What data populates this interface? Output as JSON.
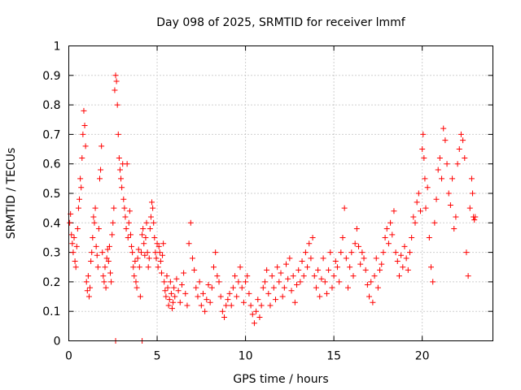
{
  "chart_data": {
    "type": "scatter",
    "title": "Day 098 of 2025, SRMTID for receiver lmmf",
    "xlabel": "GPS time / hours",
    "ylabel": "SRMTID / TECUs",
    "xlim": [
      0,
      24
    ],
    "ylim": [
      0,
      1
    ],
    "x_ticks": [
      "0",
      "5",
      "10",
      "15",
      "20"
    ],
    "x_tick_values": [
      0,
      5,
      10,
      15,
      20
    ],
    "y_ticks": [
      "0",
      "0.1",
      "0.2",
      "0.3",
      "0.4",
      "0.5",
      "0.6",
      "0.7",
      "0.8",
      "0.9",
      "1"
    ],
    "y_tick_values": [
      0,
      0.1,
      0.2,
      0.3,
      0.4,
      0.5,
      0.6,
      0.7,
      0.8,
      0.9,
      1.0
    ],
    "grid": true,
    "marker": "plus",
    "color": "#ff0000",
    "series": [
      {
        "name": "SRMTID",
        "points": [
          [
            0.05,
            0.4
          ],
          [
            0.1,
            0.43
          ],
          [
            0.15,
            0.36
          ],
          [
            0.2,
            0.33
          ],
          [
            0.25,
            0.3
          ],
          [
            0.3,
            0.35
          ],
          [
            0.35,
            0.27
          ],
          [
            0.4,
            0.25
          ],
          [
            0.45,
            0.32
          ],
          [
            0.5,
            0.38
          ],
          [
            0.55,
            0.45
          ],
          [
            0.6,
            0.48
          ],
          [
            0.65,
            0.55
          ],
          [
            0.7,
            0.52
          ],
          [
            0.75,
            0.62
          ],
          [
            0.8,
            0.7
          ],
          [
            0.85,
            0.78
          ],
          [
            0.9,
            0.73
          ],
          [
            0.95,
            0.66
          ],
          [
            1.0,
            0.2
          ],
          [
            1.05,
            0.17
          ],
          [
            1.1,
            0.22
          ],
          [
            1.15,
            0.15
          ],
          [
            1.2,
            0.18
          ],
          [
            1.25,
            0.27
          ],
          [
            1.3,
            0.3
          ],
          [
            1.35,
            0.35
          ],
          [
            1.4,
            0.42
          ],
          [
            1.45,
            0.4
          ],
          [
            1.5,
            0.45
          ],
          [
            1.55,
            0.32
          ],
          [
            1.6,
            0.29
          ],
          [
            1.65,
            0.25
          ],
          [
            1.7,
            0.38
          ],
          [
            1.75,
            0.55
          ],
          [
            1.8,
            0.58
          ],
          [
            1.85,
            0.66
          ],
          [
            1.9,
            0.3
          ],
          [
            1.95,
            0.22
          ],
          [
            2.0,
            0.2
          ],
          [
            2.05,
            0.25
          ],
          [
            2.1,
            0.18
          ],
          [
            2.15,
            0.28
          ],
          [
            2.2,
            0.31
          ],
          [
            2.25,
            0.27
          ],
          [
            2.3,
            0.32
          ],
          [
            2.35,
            0.23
          ],
          [
            2.4,
            0.2
          ],
          [
            2.45,
            0.36
          ],
          [
            2.5,
            0.4
          ],
          [
            2.55,
            0.45
          ],
          [
            2.6,
            0.85
          ],
          [
            2.65,
            0.9
          ],
          [
            2.7,
            0.88
          ],
          [
            2.75,
            0.8
          ],
          [
            2.8,
            0.7
          ],
          [
            2.85,
            0.62
          ],
          [
            2.9,
            0.58
          ],
          [
            2.95,
            0.55
          ],
          [
            3.0,
            0.52
          ],
          [
            3.05,
            0.6
          ],
          [
            3.1,
            0.48
          ],
          [
            3.15,
            0.45
          ],
          [
            3.2,
            0.42
          ],
          [
            3.25,
            0.38
          ],
          [
            3.3,
            0.6
          ],
          [
            3.35,
            0.35
          ],
          [
            3.4,
            0.4
          ],
          [
            3.45,
            0.44
          ],
          [
            3.5,
            0.36
          ],
          [
            3.55,
            0.32
          ],
          [
            3.6,
            0.3
          ],
          [
            3.65,
            0.25
          ],
          [
            3.7,
            0.22
          ],
          [
            3.75,
            0.27
          ],
          [
            3.8,
            0.2
          ],
          [
            3.85,
            0.18
          ],
          [
            3.9,
            0.28
          ],
          [
            3.95,
            0.31
          ],
          [
            4.0,
            0.25
          ],
          [
            4.05,
            0.15
          ],
          [
            4.1,
            0.3
          ],
          [
            4.15,
            0.36
          ],
          [
            4.2,
            0.38
          ],
          [
            4.25,
            0.33
          ],
          [
            4.3,
            0.29
          ],
          [
            4.35,
            0.35
          ],
          [
            4.4,
            0.4
          ],
          [
            4.45,
            0.3
          ],
          [
            4.5,
            0.25
          ],
          [
            4.55,
            0.28
          ],
          [
            4.6,
            0.38
          ],
          [
            4.65,
            0.42
          ],
          [
            4.7,
            0.47
          ],
          [
            4.75,
            0.45
          ],
          [
            4.8,
            0.4
          ],
          [
            4.85,
            0.35
          ],
          [
            4.9,
            0.3
          ],
          [
            4.95,
            0.28
          ],
          [
            5.0,
            0.33
          ],
          [
            5.05,
            0.25
          ],
          [
            5.1,
            0.32
          ],
          [
            5.15,
            0.3
          ],
          [
            5.2,
            0.27
          ],
          [
            5.25,
            0.23
          ],
          [
            5.3,
            0.29
          ],
          [
            5.35,
            0.33
          ],
          [
            5.4,
            0.2
          ],
          [
            5.45,
            0.17
          ],
          [
            5.5,
            0.15
          ],
          [
            5.55,
            0.22
          ],
          [
            5.6,
            0.18
          ],
          [
            5.65,
            0.12
          ],
          [
            5.7,
            0.14
          ],
          [
            5.75,
            0.2
          ],
          [
            5.8,
            0.16
          ],
          [
            5.85,
            0.11
          ],
          [
            5.9,
            0.13
          ],
          [
            5.95,
            0.18
          ],
          [
            6.0,
            0.15
          ],
          [
            6.1,
            0.21
          ],
          [
            6.2,
            0.17
          ],
          [
            6.3,
            0.13
          ],
          [
            6.4,
            0.19
          ],
          [
            6.5,
            0.23
          ],
          [
            6.6,
            0.16
          ],
          [
            6.7,
            0.12
          ],
          [
            6.8,
            0.33
          ],
          [
            6.9,
            0.4
          ],
          [
            7.0,
            0.28
          ],
          [
            7.1,
            0.24
          ],
          [
            7.2,
            0.18
          ],
          [
            7.3,
            0.15
          ],
          [
            7.4,
            0.2
          ],
          [
            7.5,
            0.12
          ],
          [
            7.6,
            0.16
          ],
          [
            7.7,
            0.1
          ],
          [
            7.8,
            0.14
          ],
          [
            7.9,
            0.19
          ],
          [
            8.0,
            0.13
          ],
          [
            8.1,
            0.18
          ],
          [
            8.2,
            0.25
          ],
          [
            8.3,
            0.3
          ],
          [
            8.4,
            0.22
          ],
          [
            8.5,
            0.2
          ],
          [
            8.6,
            0.15
          ],
          [
            8.7,
            0.1
          ],
          [
            8.8,
            0.08
          ],
          [
            8.9,
            0.12
          ],
          [
            9.0,
            0.14
          ],
          [
            9.1,
            0.16
          ],
          [
            9.2,
            0.12
          ],
          [
            9.3,
            0.18
          ],
          [
            9.4,
            0.22
          ],
          [
            9.5,
            0.15
          ],
          [
            9.6,
            0.2
          ],
          [
            9.7,
            0.25
          ],
          [
            9.8,
            0.18
          ],
          [
            9.9,
            0.13
          ],
          [
            10.0,
            0.2
          ],
          [
            10.1,
            0.22
          ],
          [
            10.2,
            0.16
          ],
          [
            10.3,
            0.12
          ],
          [
            10.4,
            0.09
          ],
          [
            10.5,
            0.06
          ],
          [
            10.6,
            0.1
          ],
          [
            10.7,
            0.14
          ],
          [
            10.8,
            0.08
          ],
          [
            10.9,
            0.12
          ],
          [
            11.0,
            0.18
          ],
          [
            11.1,
            0.2
          ],
          [
            11.2,
            0.24
          ],
          [
            11.3,
            0.16
          ],
          [
            11.4,
            0.12
          ],
          [
            11.5,
            0.22
          ],
          [
            11.6,
            0.18
          ],
          [
            11.7,
            0.14
          ],
          [
            11.8,
            0.25
          ],
          [
            11.9,
            0.2
          ],
          [
            12.0,
            0.23
          ],
          [
            12.1,
            0.15
          ],
          [
            12.2,
            0.18
          ],
          [
            12.3,
            0.26
          ],
          [
            12.4,
            0.21
          ],
          [
            12.5,
            0.28
          ],
          [
            12.6,
            0.17
          ],
          [
            12.7,
            0.22
          ],
          [
            12.8,
            0.13
          ],
          [
            12.9,
            0.19
          ],
          [
            13.0,
            0.24
          ],
          [
            13.1,
            0.2
          ],
          [
            13.2,
            0.27
          ],
          [
            13.3,
            0.22
          ],
          [
            13.4,
            0.3
          ],
          [
            13.5,
            0.25
          ],
          [
            13.6,
            0.33
          ],
          [
            13.7,
            0.28
          ],
          [
            13.8,
            0.35
          ],
          [
            13.9,
            0.22
          ],
          [
            14.0,
            0.18
          ],
          [
            14.1,
            0.24
          ],
          [
            14.2,
            0.15
          ],
          [
            14.3,
            0.21
          ],
          [
            14.4,
            0.28
          ],
          [
            14.5,
            0.2
          ],
          [
            14.6,
            0.16
          ],
          [
            14.7,
            0.24
          ],
          [
            14.8,
            0.3
          ],
          [
            14.9,
            0.18
          ],
          [
            15.0,
            0.22
          ],
          [
            15.1,
            0.27
          ],
          [
            15.2,
            0.25
          ],
          [
            15.3,
            0.2
          ],
          [
            15.4,
            0.3
          ],
          [
            15.5,
            0.35
          ],
          [
            15.6,
            0.45
          ],
          [
            15.7,
            0.28
          ],
          [
            15.8,
            0.18
          ],
          [
            15.9,
            0.25
          ],
          [
            16.0,
            0.3
          ],
          [
            16.1,
            0.22
          ],
          [
            16.2,
            0.33
          ],
          [
            16.3,
            0.38
          ],
          [
            16.4,
            0.32
          ],
          [
            16.5,
            0.26
          ],
          [
            16.6,
            0.3
          ],
          [
            16.7,
            0.28
          ],
          [
            16.8,
            0.24
          ],
          [
            16.9,
            0.19
          ],
          [
            17.0,
            0.15
          ],
          [
            17.1,
            0.2
          ],
          [
            17.2,
            0.13
          ],
          [
            17.3,
            0.22
          ],
          [
            17.4,
            0.28
          ],
          [
            17.5,
            0.18
          ],
          [
            17.6,
            0.24
          ],
          [
            17.7,
            0.26
          ],
          [
            17.8,
            0.3
          ],
          [
            17.9,
            0.35
          ],
          [
            18.0,
            0.38
          ],
          [
            18.1,
            0.33
          ],
          [
            18.2,
            0.4
          ],
          [
            18.3,
            0.36
          ],
          [
            18.4,
            0.44
          ],
          [
            18.5,
            0.3
          ],
          [
            18.6,
            0.27
          ],
          [
            18.7,
            0.22
          ],
          [
            18.8,
            0.29
          ],
          [
            18.9,
            0.25
          ],
          [
            19.0,
            0.32
          ],
          [
            19.1,
            0.28
          ],
          [
            19.2,
            0.24
          ],
          [
            19.3,
            0.3
          ],
          [
            19.4,
            0.35
          ],
          [
            19.5,
            0.42
          ],
          [
            19.6,
            0.4
          ],
          [
            19.7,
            0.47
          ],
          [
            19.8,
            0.5
          ],
          [
            19.9,
            0.44
          ],
          [
            20.0,
            0.65
          ],
          [
            20.05,
            0.7
          ],
          [
            20.1,
            0.62
          ],
          [
            20.15,
            0.55
          ],
          [
            20.2,
            0.45
          ],
          [
            20.3,
            0.52
          ],
          [
            20.4,
            0.35
          ],
          [
            20.5,
            0.25
          ],
          [
            20.6,
            0.2
          ],
          [
            20.7,
            0.4
          ],
          [
            20.8,
            0.48
          ],
          [
            20.9,
            0.58
          ],
          [
            21.0,
            0.62
          ],
          [
            21.1,
            0.55
          ],
          [
            21.2,
            0.72
          ],
          [
            21.3,
            0.68
          ],
          [
            21.4,
            0.6
          ],
          [
            21.5,
            0.5
          ],
          [
            21.6,
            0.46
          ],
          [
            21.7,
            0.55
          ],
          [
            21.8,
            0.38
          ],
          [
            21.9,
            0.42
          ],
          [
            22.0,
            0.6
          ],
          [
            22.1,
            0.65
          ],
          [
            22.2,
            0.7
          ],
          [
            22.3,
            0.68
          ],
          [
            22.4,
            0.62
          ],
          [
            22.5,
            0.3
          ],
          [
            22.6,
            0.22
          ],
          [
            22.7,
            0.45
          ],
          [
            22.8,
            0.55
          ],
          [
            22.85,
            0.5
          ],
          [
            22.9,
            0.42
          ],
          [
            22.95,
            0.41
          ],
          [
            23.0,
            0.42
          ],
          [
            2.65,
            0.0
          ],
          [
            4.15,
            0.0
          ]
        ]
      }
    ]
  }
}
